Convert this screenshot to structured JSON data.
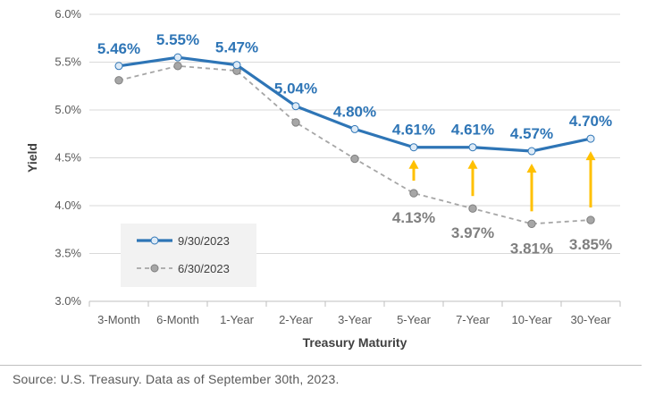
{
  "chart_data": {
    "type": "line",
    "title": "",
    "xlabel": "Treasury Maturity",
    "ylabel": "Yield",
    "categories": [
      "3-Month",
      "6-Month",
      "1-Year",
      "2-Year",
      "3-Year",
      "5-Year",
      "7-Year",
      "10-Year",
      "30-Year"
    ],
    "ylim": [
      3.0,
      6.0
    ],
    "yticks": [
      3.0,
      3.5,
      4.0,
      4.5,
      5.0,
      5.5,
      6.0
    ],
    "ytick_labels": [
      "3.0%",
      "3.5%",
      "4.0%",
      "4.5%",
      "5.0%",
      "5.5%",
      "6.0%"
    ],
    "grid": "horizontal",
    "legend_position": "bottom-left",
    "series": [
      {
        "name": "9/30/2023",
        "color": "#2e75b6",
        "style": "solid",
        "values": [
          5.46,
          5.55,
          5.47,
          5.04,
          4.8,
          4.61,
          4.61,
          4.57,
          4.7
        ],
        "labels": [
          "5.46%",
          "5.55%",
          "5.47%",
          "5.04%",
          "4.80%",
          "4.61%",
          "4.61%",
          "4.57%",
          "4.70%"
        ]
      },
      {
        "name": "6/30/2023",
        "color": "#a6a6a6",
        "style": "dashed",
        "values": [
          5.31,
          5.46,
          5.41,
          4.87,
          4.49,
          4.13,
          3.97,
          3.81,
          3.85
        ],
        "labels": [
          "",
          "",
          "",
          "",
          "",
          "4.13%",
          "3.97%",
          "3.81%",
          "3.85%"
        ]
      }
    ],
    "annotations": {
      "arrows_color": "#ffc000",
      "arrow_categories": [
        "5-Year",
        "7-Year",
        "10-Year",
        "30-Year"
      ]
    }
  },
  "source": "Source: U.S. Treasury. Data as of September 30th, 2023."
}
